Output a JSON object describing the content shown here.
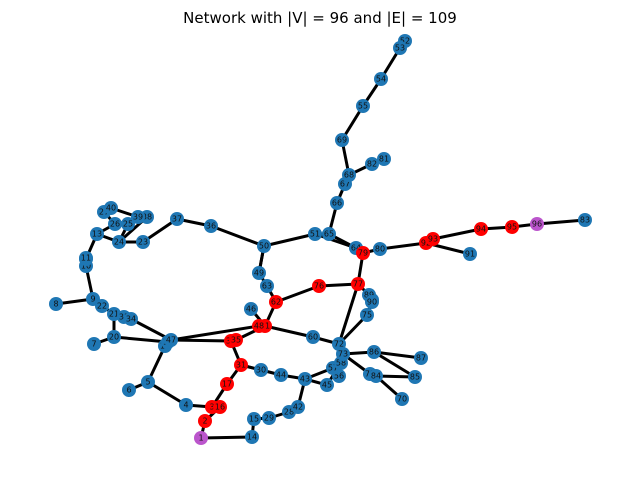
{
  "chart_data": {
    "type": "network",
    "title": "Network with |V| = 96 and |E| = 109",
    "colors": {
      "default": "#1f77b4",
      "highlight": "#ff0000",
      "endpoint": "#bb55cc",
      "edge": "#000000"
    },
    "nodes": [
      {
        "id": "1",
        "group": "endpoint"
      },
      {
        "id": "2",
        "group": "highlight"
      },
      {
        "id": "3",
        "group": "highlight"
      },
      {
        "id": "4",
        "group": "default"
      },
      {
        "id": "5",
        "group": "default"
      },
      {
        "id": "6",
        "group": "default"
      },
      {
        "id": "7",
        "group": "default"
      },
      {
        "id": "8",
        "group": "default"
      },
      {
        "id": "9",
        "group": "default"
      },
      {
        "id": "10",
        "group": "default"
      },
      {
        "id": "12",
        "group": "default"
      },
      {
        "id": "13",
        "group": "default"
      },
      {
        "id": "14",
        "group": "default"
      },
      {
        "id": "15",
        "group": "default"
      },
      {
        "id": "16",
        "group": "highlight"
      },
      {
        "id": "17",
        "group": "highlight"
      },
      {
        "id": "18",
        "group": "default"
      },
      {
        "id": "19",
        "group": "default"
      },
      {
        "id": "20",
        "group": "default"
      },
      {
        "id": "21",
        "group": "default"
      },
      {
        "id": "22",
        "group": "default"
      },
      {
        "id": "23",
        "group": "default"
      },
      {
        "id": "24",
        "group": "default"
      },
      {
        "id": "25",
        "group": "default"
      },
      {
        "id": "26",
        "group": "default"
      },
      {
        "id": "27",
        "group": "default"
      },
      {
        "id": "28",
        "group": "default"
      },
      {
        "id": "29",
        "group": "default"
      },
      {
        "id": "30",
        "group": "default"
      },
      {
        "id": "31",
        "group": "highlight"
      },
      {
        "id": "32",
        "group": "highlight"
      },
      {
        "id": "33",
        "group": "default"
      },
      {
        "id": "34",
        "group": "default"
      },
      {
        "id": "36",
        "group": "default"
      },
      {
        "id": "37",
        "group": "default"
      },
      {
        "id": "38",
        "group": "default"
      },
      {
        "id": "39",
        "group": "default"
      },
      {
        "id": "40",
        "group": "default"
      },
      {
        "id": "41",
        "group": "highlight"
      },
      {
        "id": "42",
        "group": "default"
      },
      {
        "id": "43",
        "group": "default"
      },
      {
        "id": "44",
        "group": "default"
      },
      {
        "id": "45",
        "group": "default"
      },
      {
        "id": "46",
        "group": "default"
      },
      {
        "id": "47",
        "group": "default"
      },
      {
        "id": "48",
        "group": "highlight"
      },
      {
        "id": "49",
        "group": "default"
      },
      {
        "id": "50",
        "group": "default"
      },
      {
        "id": "51",
        "group": "default"
      },
      {
        "id": "52",
        "group": "default"
      },
      {
        "id": "53",
        "group": "default"
      },
      {
        "id": "54",
        "group": "default"
      },
      {
        "id": "55",
        "group": "default"
      },
      {
        "id": "56",
        "group": "default"
      },
      {
        "id": "57",
        "group": "default"
      },
      {
        "id": "58",
        "group": "default"
      },
      {
        "id": "60",
        "group": "default"
      },
      {
        "id": "62",
        "group": "highlight"
      },
      {
        "id": "63",
        "group": "default"
      },
      {
        "id": "64",
        "group": "default"
      },
      {
        "id": "65",
        "group": "default"
      },
      {
        "id": "66",
        "group": "default"
      },
      {
        "id": "67",
        "group": "default"
      },
      {
        "id": "68",
        "group": "default"
      },
      {
        "id": "69",
        "group": "default"
      },
      {
        "id": "70",
        "group": "default"
      },
      {
        "id": "71",
        "group": "default"
      },
      {
        "id": "72",
        "group": "default"
      },
      {
        "id": "73",
        "group": "default"
      },
      {
        "id": "75",
        "group": "default"
      },
      {
        "id": "76",
        "group": "highlight"
      },
      {
        "id": "77",
        "group": "highlight"
      },
      {
        "id": "79",
        "group": "highlight"
      },
      {
        "id": "80",
        "group": "default"
      },
      {
        "id": "81",
        "group": "default"
      },
      {
        "id": "82",
        "group": "default"
      },
      {
        "id": "83",
        "group": "default"
      },
      {
        "id": "84",
        "group": "default"
      },
      {
        "id": "85",
        "group": "default"
      },
      {
        "id": "86",
        "group": "default"
      },
      {
        "id": "87",
        "group": "default"
      },
      {
        "id": "88",
        "group": "default"
      },
      {
        "id": "89",
        "group": "default"
      },
      {
        "id": "90",
        "group": "default"
      },
      {
        "id": "91",
        "group": "default"
      },
      {
        "id": "92",
        "group": "highlight"
      },
      {
        "id": "93",
        "group": "highlight"
      },
      {
        "id": "94",
        "group": "highlight"
      },
      {
        "id": "95",
        "group": "highlight"
      },
      {
        "id": "96",
        "group": "endpoint"
      },
      {
        "id": "35",
        "group": "highlight"
      },
      {
        "id": "11",
        "group": "default"
      }
    ],
    "edges": [
      [
        "52",
        "53"
      ],
      [
        "53",
        "54"
      ],
      [
        "54",
        "55"
      ],
      [
        "55",
        "69"
      ],
      [
        "69",
        "68"
      ],
      [
        "68",
        "82"
      ],
      [
        "82",
        "81"
      ],
      [
        "68",
        "67"
      ],
      [
        "67",
        "66"
      ],
      [
        "66",
        "65"
      ],
      [
        "65",
        "51"
      ],
      [
        "51",
        "50"
      ],
      [
        "50",
        "36"
      ],
      [
        "36",
        "37"
      ],
      [
        "37",
        "23"
      ],
      [
        "23",
        "24"
      ],
      [
        "24",
        "38"
      ],
      [
        "38",
        "39"
      ],
      [
        "39",
        "40"
      ],
      [
        "40",
        "27"
      ],
      [
        "27",
        "26"
      ],
      [
        "26",
        "25"
      ],
      [
        "25",
        "24"
      ],
      [
        "24",
        "13"
      ],
      [
        "13",
        "12"
      ],
      [
        "12",
        "10"
      ],
      [
        "10",
        "9"
      ],
      [
        "9",
        "8"
      ],
      [
        "9",
        "22"
      ],
      [
        "22",
        "21"
      ],
      [
        "21",
        "33"
      ],
      [
        "33",
        "34"
      ],
      [
        "34",
        "47"
      ],
      [
        "21",
        "20"
      ],
      [
        "20",
        "7"
      ],
      [
        "20",
        "19"
      ],
      [
        "19",
        "18"
      ],
      [
        "18",
        "47"
      ],
      [
        "47",
        "48"
      ],
      [
        "47",
        "32"
      ],
      [
        "18",
        "5"
      ],
      [
        "5",
        "6"
      ],
      [
        "5",
        "4"
      ],
      [
        "4",
        "3"
      ],
      [
        "3",
        "16"
      ],
      [
        "16",
        "2"
      ],
      [
        "2",
        "1"
      ],
      [
        "1",
        "14"
      ],
      [
        "14",
        "15"
      ],
      [
        "15",
        "29"
      ],
      [
        "29",
        "28"
      ],
      [
        "28",
        "42"
      ],
      [
        "42",
        "43"
      ],
      [
        "43",
        "44"
      ],
      [
        "44",
        "30"
      ],
      [
        "30",
        "31"
      ],
      [
        "31",
        "32"
      ],
      [
        "31",
        "17"
      ],
      [
        "17",
        "3"
      ],
      [
        "43",
        "57"
      ],
      [
        "57",
        "58"
      ],
      [
        "58",
        "45"
      ],
      [
        "45",
        "43"
      ],
      [
        "57",
        "56"
      ],
      [
        "56",
        "72"
      ],
      [
        "72",
        "60"
      ],
      [
        "60",
        "41"
      ],
      [
        "41",
        "35"
      ],
      [
        "41",
        "48"
      ],
      [
        "41",
        "62"
      ],
      [
        "62",
        "63"
      ],
      [
        "63",
        "49"
      ],
      [
        "49",
        "50"
      ],
      [
        "46",
        "41"
      ],
      [
        "62",
        "76"
      ],
      [
        "76",
        "77"
      ],
      [
        "77",
        "89"
      ],
      [
        "89",
        "88"
      ],
      [
        "77",
        "79"
      ],
      [
        "79",
        "64"
      ],
      [
        "64",
        "51"
      ],
      [
        "79",
        "80"
      ],
      [
        "80",
        "92"
      ],
      [
        "92",
        "91"
      ],
      [
        "92",
        "93"
      ],
      [
        "93",
        "94"
      ],
      [
        "94",
        "95"
      ],
      [
        "95",
        "96"
      ],
      [
        "96",
        "83"
      ],
      [
        "77",
        "72"
      ],
      [
        "72",
        "73"
      ],
      [
        "73",
        "86"
      ],
      [
        "86",
        "87"
      ],
      [
        "86",
        "85"
      ],
      [
        "73",
        "71"
      ],
      [
        "71",
        "84"
      ],
      [
        "84",
        "70"
      ],
      [
        "84",
        "85"
      ],
      [
        "75",
        "72"
      ],
      [
        "75",
        "90"
      ],
      [
        "65",
        "64"
      ],
      [
        "50",
        "49"
      ],
      [
        "11",
        "10"
      ],
      [
        "13",
        "26"
      ],
      [
        "25",
        "38"
      ],
      [
        "59",
        "73"
      ],
      [
        "32",
        "35"
      ],
      [
        "41",
        "48"
      ],
      [
        "31",
        "30"
      ]
    ]
  }
}
